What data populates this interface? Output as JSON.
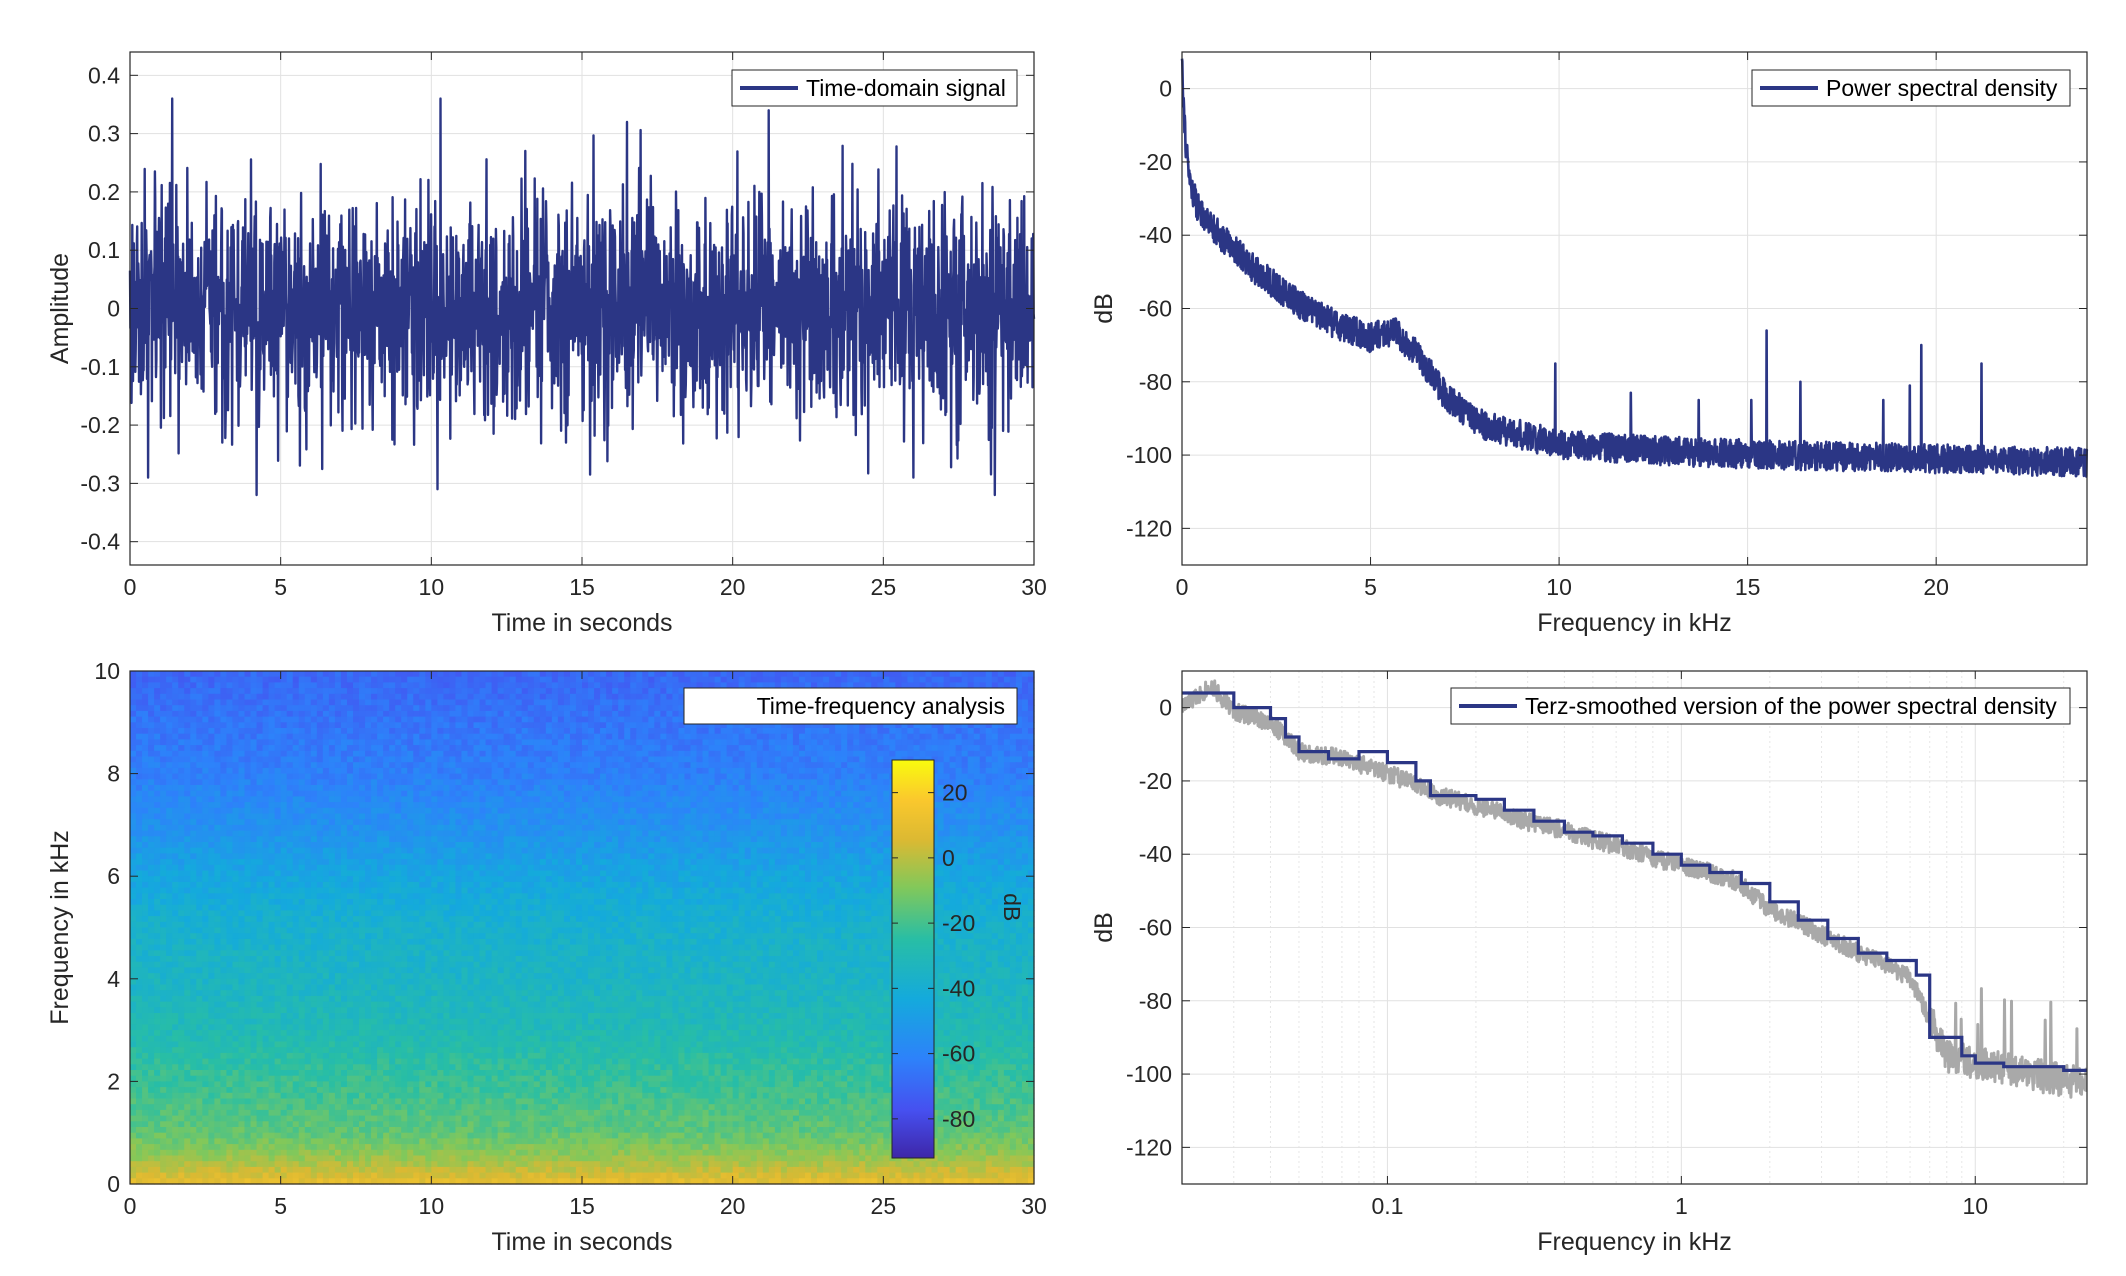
{
  "colors": {
    "line": "#2b3685",
    "grid": "#e1e1e1",
    "gray_line": "#a9a9a9",
    "axis": "#262626"
  },
  "chart_data": [
    {
      "type": "line",
      "legend": "Time-domain signal",
      "legend_position": "top-right",
      "xlabel": "Time in seconds",
      "ylabel": "Amplitude",
      "xlim": [
        0,
        30
      ],
      "ylim": [
        -0.44,
        0.44
      ],
      "xticks": [
        0,
        5,
        10,
        15,
        20,
        25,
        30
      ],
      "xtick_labels": [
        "0",
        "5",
        "10",
        "15",
        "20",
        "25",
        "30"
      ],
      "yticks": [
        0.4,
        0.3,
        0.2,
        0.1,
        0,
        -0.1,
        -0.2,
        -0.3,
        -0.4
      ],
      "ytick_labels": [
        "0.4",
        "0.3",
        "0.2",
        "0.1",
        "0",
        "-0.1",
        "-0.2",
        "-0.3",
        "-0.4"
      ],
      "grid": true,
      "signal": {
        "std": 0.12,
        "min": -0.32,
        "max": 0.36
      },
      "peaks": [
        [
          1.4,
          0.36
        ],
        [
          10.3,
          0.36
        ],
        [
          16.5,
          0.32
        ],
        [
          21.2,
          0.34
        ],
        [
          4.2,
          -0.32
        ],
        [
          10.2,
          -0.31
        ],
        [
          28.7,
          -0.32
        ],
        [
          0.6,
          -0.29
        ],
        [
          26.0,
          -0.29
        ]
      ]
    },
    {
      "type": "line",
      "legend": "Power spectral density",
      "legend_position": "top-right",
      "xlabel": "Frequency in kHz",
      "ylabel": "dB",
      "xlim": [
        0,
        24
      ],
      "ylim": [
        -130,
        10
      ],
      "xticks": [
        0,
        5,
        10,
        15,
        20
      ],
      "xtick_labels": [
        "0",
        "5",
        "10",
        "15",
        "20"
      ],
      "yticks": [
        0,
        -20,
        -40,
        -60,
        -80,
        -100,
        -120
      ],
      "ytick_labels": [
        "0",
        "-20",
        "-40",
        "-60",
        "-80",
        "-100",
        "-120"
      ],
      "grid": true,
      "envelope": [
        [
          0,
          10
        ],
        [
          0.05,
          -5
        ],
        [
          0.1,
          -15
        ],
        [
          0.2,
          -25
        ],
        [
          0.4,
          -32
        ],
        [
          1,
          -40
        ],
        [
          2,
          -50
        ],
        [
          3,
          -58
        ],
        [
          4,
          -64
        ],
        [
          5,
          -68
        ],
        [
          5.6,
          -66
        ],
        [
          6.2,
          -72
        ],
        [
          7,
          -84
        ],
        [
          8,
          -92
        ],
        [
          10,
          -97
        ],
        [
          13,
          -99
        ],
        [
          16,
          -100
        ],
        [
          20,
          -101
        ],
        [
          24,
          -102
        ]
      ],
      "spikes": [
        [
          9.9,
          -75
        ],
        [
          11.9,
          -83
        ],
        [
          13.7,
          -85
        ],
        [
          15.1,
          -85
        ],
        [
          15.5,
          -66
        ],
        [
          16.4,
          -80
        ],
        [
          18.6,
          -85
        ],
        [
          19.3,
          -81
        ],
        [
          19.6,
          -70
        ],
        [
          21.2,
          -75
        ]
      ]
    },
    {
      "type": "heatmap",
      "legend": "Time-frequency analysis",
      "legend_position": "top-right",
      "xlabel": "Time in seconds",
      "ylabel": "Frequency in kHz",
      "xlim": [
        0,
        30
      ],
      "ylim": [
        0,
        10
      ],
      "xticks": [
        0,
        5,
        10,
        15,
        20,
        25,
        30
      ],
      "xtick_labels": [
        "0",
        "5",
        "10",
        "15",
        "20",
        "25",
        "30"
      ],
      "yticks": [
        0,
        2,
        4,
        6,
        8,
        10
      ],
      "ytick_labels": [
        "0",
        "2",
        "4",
        "6",
        "8",
        "10"
      ],
      "colorbar": {
        "label": "dB",
        "clim": [
          -92,
          30
        ],
        "ticks": [
          20,
          0,
          -20,
          -40,
          -60,
          -80
        ],
        "tick_labels": [
          "20",
          "0",
          "-20",
          "-40",
          "-60",
          "-80"
        ]
      },
      "level_profile": [
        [
          0,
          10
        ],
        [
          0.5,
          -5
        ],
        [
          1,
          -15
        ],
        [
          2,
          -22
        ],
        [
          3,
          -30
        ],
        [
          4,
          -35
        ],
        [
          5,
          -38
        ],
        [
          6,
          -45
        ],
        [
          7,
          -55
        ],
        [
          8,
          -62
        ],
        [
          9,
          -66
        ],
        [
          10,
          -70
        ]
      ]
    },
    {
      "type": "line",
      "legend": "Terz-smoothed version of the power spectral density",
      "legend_position": "top-right",
      "xlabel": "Frequency in kHz",
      "ylabel": "dB",
      "xscale": "log",
      "xlim": [
        0.02,
        24
      ],
      "ylim": [
        -130,
        10
      ],
      "xticks": [
        0.1,
        1,
        10
      ],
      "xtick_labels": [
        "0.1",
        "1",
        "10"
      ],
      "yticks": [
        0,
        -20,
        -40,
        -60,
        -80,
        -100,
        -120
      ],
      "ytick_labels": [
        "0",
        "-20",
        "-40",
        "-60",
        "-80",
        "-100",
        "-120"
      ],
      "grid": true,
      "series": [
        {
          "name": "Terz-smoothed version of the power spectral density",
          "steps": [
            [
              0.02,
              4
            ],
            [
              0.03,
              0
            ],
            [
              0.04,
              -3
            ],
            [
              0.045,
              -8
            ],
            [
              0.05,
              -12
            ],
            [
              0.063,
              -14
            ],
            [
              0.08,
              -12
            ],
            [
              0.1,
              -15
            ],
            [
              0.125,
              -20
            ],
            [
              0.14,
              -24
            ],
            [
              0.2,
              -25
            ],
            [
              0.25,
              -28
            ],
            [
              0.315,
              -31
            ],
            [
              0.4,
              -34
            ],
            [
              0.5,
              -35
            ],
            [
              0.63,
              -37
            ],
            [
              0.8,
              -40
            ],
            [
              1.0,
              -43
            ],
            [
              1.25,
              -45
            ],
            [
              1.6,
              -48
            ],
            [
              2.0,
              -53
            ],
            [
              2.5,
              -58
            ],
            [
              3.15,
              -63
            ],
            [
              4.0,
              -67
            ],
            [
              5.0,
              -69
            ],
            [
              6.3,
              -73
            ],
            [
              7.0,
              -90
            ],
            [
              8.0,
              -90
            ],
            [
              9.0,
              -95
            ],
            [
              10.0,
              -97
            ],
            [
              12.5,
              -98
            ],
            [
              16.0,
              -98
            ],
            [
              20.0,
              -99
            ],
            [
              24,
              -99
            ]
          ]
        },
        {
          "name": "",
          "envelope": [
            [
              0.02,
              0
            ],
            [
              0.025,
              6
            ],
            [
              0.03,
              -1
            ],
            [
              0.04,
              -4
            ],
            [
              0.05,
              -12
            ],
            [
              0.07,
              -14
            ],
            [
              0.1,
              -18
            ],
            [
              0.15,
              -24
            ],
            [
              0.2,
              -27
            ],
            [
              0.3,
              -31
            ],
            [
              0.5,
              -36
            ],
            [
              0.8,
              -41
            ],
            [
              1.0,
              -43
            ],
            [
              1.5,
              -47
            ],
            [
              2.0,
              -55
            ],
            [
              3.0,
              -62
            ],
            [
              4.0,
              -67
            ],
            [
              5.0,
              -70
            ],
            [
              6.0,
              -74
            ],
            [
              7.0,
              -85
            ],
            [
              8.0,
              -95
            ],
            [
              10,
              -97
            ],
            [
              15,
              -100
            ],
            [
              24,
              -103
            ]
          ]
        }
      ]
    }
  ]
}
